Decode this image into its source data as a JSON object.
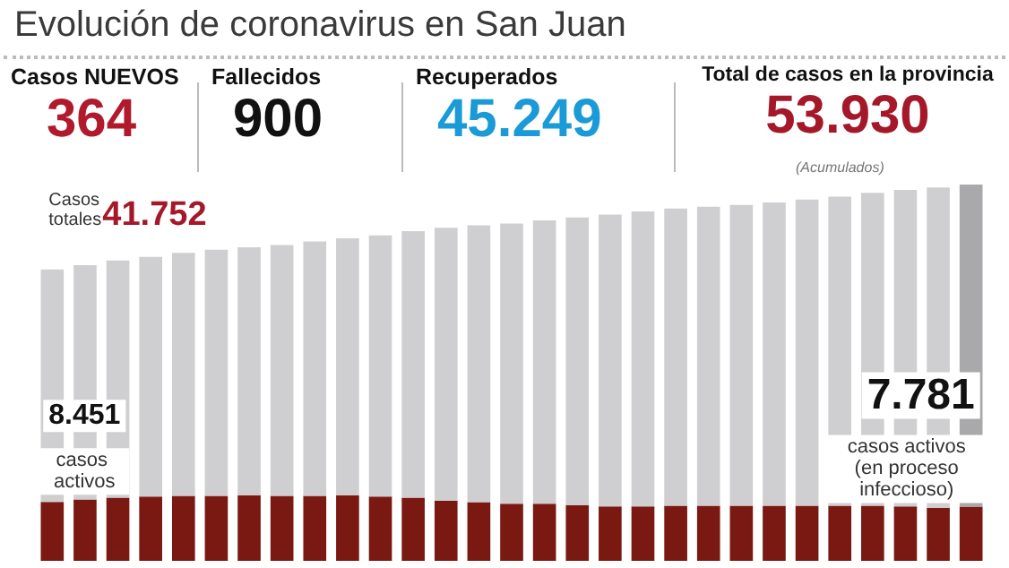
{
  "chart_data": {
    "type": "bar",
    "stacked": true,
    "title": "Evolución de coronavirus en San Juan",
    "annotations": [
      "Casos NUEVOS",
      "364",
      "Fallecidos",
      "900",
      "Recuperados",
      "45.249",
      "Total de casos en la provincia",
      "53.930",
      "(Acumulados)",
      "Casos totales",
      "casos activos",
      "casos activos (en proceso infeccioso)"
    ],
    "categories": [
      null,
      null,
      null,
      null,
      null,
      null,
      null,
      null,
      null,
      null,
      null,
      null,
      null,
      null,
      null,
      null,
      null,
      null,
      null,
      null,
      null,
      null,
      null,
      null,
      null,
      null,
      null,
      null,
      null
    ],
    "series": [
      {
        "color": "#7a1812",
        "values": [
          8451,
          8800,
          9050,
          9200,
          9300,
          9300,
          9400,
          9300,
          9300,
          9400,
          9200,
          9050,
          8600,
          8400,
          8200,
          8200,
          8000,
          7800,
          7800,
          7900,
          7900,
          7900,
          7900,
          7900,
          7900,
          7900,
          7800,
          7600,
          7781
        ],
        "value_labels": [
          "8.451",
          null,
          null,
          null,
          null,
          null,
          null,
          null,
          null,
          null,
          null,
          null,
          null,
          null,
          null,
          null,
          null,
          null,
          null,
          null,
          null,
          null,
          null,
          null,
          null,
          null,
          null,
          null,
          "7.781"
        ]
      },
      {
        "color": "#cfcfd1",
        "colors": [
          "#cfcfd1",
          "#cfcfd1",
          "#cfcfd1",
          "#cfcfd1",
          "#cfcfd1",
          "#cfcfd1",
          "#cfcfd1",
          "#cfcfd1",
          "#cfcfd1",
          "#cfcfd1",
          "#cfcfd1",
          "#cfcfd1",
          "#cfcfd1",
          "#cfcfd1",
          "#cfcfd1",
          "#cfcfd1",
          "#cfcfd1",
          "#cfcfd1",
          "#cfcfd1",
          "#cfcfd1",
          "#cfcfd1",
          "#cfcfd1",
          "#cfcfd1",
          "#cfcfd1",
          "#cfcfd1",
          "#cfcfd1",
          "#cfcfd1",
          "#cfcfd1",
          "#a9a9ab"
        ],
        "values": [
          33301,
          33560,
          33990,
          34350,
          34850,
          35280,
          35530,
          35970,
          36480,
          36810,
          37440,
          38190,
          39150,
          39690,
          40150,
          40580,
          41210,
          41840,
          42270,
          42600,
          42860,
          43120,
          43460,
          43890,
          44310,
          44830,
          45350,
          45900,
          46149
        ]
      }
    ],
    "totals": [
      "41.752",
      null,
      null,
      null,
      null,
      null,
      null,
      null,
      null,
      null,
      null,
      null,
      null,
      null,
      null,
      null,
      null,
      null,
      null,
      null,
      null,
      null,
      null,
      null,
      null,
      null,
      null,
      null,
      null
    ]
  }
}
